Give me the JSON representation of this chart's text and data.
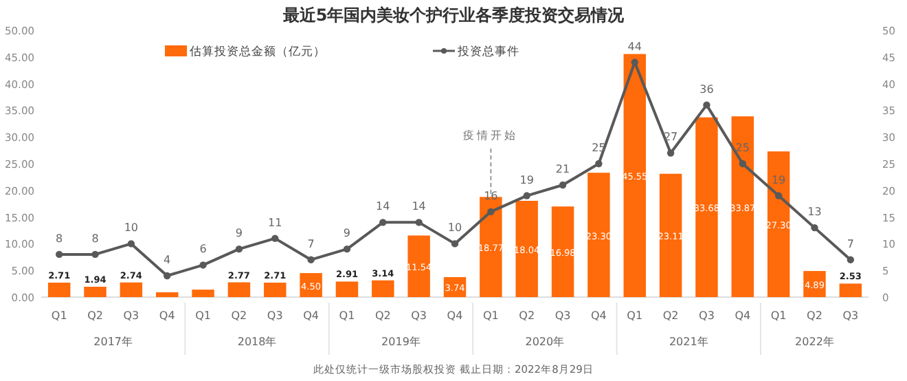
{
  "chart_data": {
    "type": "bar",
    "title": "最近5年国内美妆个护行业各季度投资交易情况",
    "categories": [
      "Q1",
      "Q2",
      "Q3",
      "Q4",
      "Q1",
      "Q2",
      "Q3",
      "Q4",
      "Q1",
      "Q2",
      "Q3",
      "Q4",
      "Q1",
      "Q2",
      "Q3",
      "Q4",
      "Q1",
      "Q2",
      "Q3",
      "Q4",
      "Q1",
      "Q2",
      "Q3"
    ],
    "series": [
      {
        "name": "估算投资总金额（亿元）",
        "color": "#ff6a0a",
        "values": [
          2.71,
          1.94,
          2.74,
          0.9,
          1.4,
          2.77,
          2.71,
          4.5,
          2.91,
          3.14,
          11.54,
          3.74,
          18.77,
          18.04,
          16.98,
          23.3,
          45.55,
          23.11,
          33.68,
          33.87,
          27.3,
          4.89,
          2.53
        ],
        "value_labels": [
          "2.71",
          "1.94",
          "2.74",
          null,
          null,
          "2.77",
          "2.71",
          "4.50",
          "2.91",
          "3.14",
          "11.54",
          "3.74",
          "18.77",
          "18.04",
          "16.98",
          "23.30",
          "45.55",
          "23.11",
          "33.68",
          "33.87",
          "27.30",
          "4.89",
          "2.53"
        ]
      },
      {
        "name": "投资总事件",
        "type": "line",
        "axis": "y2",
        "color": "#595959",
        "marker": "circle",
        "values": [
          8,
          8,
          10,
          4,
          6,
          9,
          11,
          7,
          9,
          14,
          14,
          10,
          16,
          19,
          21,
          25,
          44,
          27,
          36,
          25,
          19,
          13,
          7
        ],
        "value_labels": [
          "8",
          "8",
          "10",
          "4",
          "6",
          "9",
          "11",
          "7",
          "9",
          "14",
          "14",
          "10",
          "16",
          "19",
          "21",
          "25",
          "44",
          "27",
          "36",
          "25",
          "19",
          "13",
          "7"
        ]
      }
    ],
    "ylim": [
      0,
      50
    ],
    "yticks": [
      {
        "value": 0,
        "label": "0.00"
      },
      {
        "value": 5,
        "label": "5.00"
      },
      {
        "value": 10,
        "label": "10.00"
      },
      {
        "value": 15,
        "label": "15.00"
      },
      {
        "value": 20,
        "label": "20.00"
      },
      {
        "value": 25,
        "label": "25.00"
      },
      {
        "value": 30,
        "label": "30.00"
      },
      {
        "value": 35,
        "label": "35.00"
      },
      {
        "value": 40,
        "label": "40.00"
      },
      {
        "value": 45,
        "label": "45.00"
      },
      {
        "value": 50,
        "label": "50.00"
      }
    ],
    "y2lim": [
      0,
      50
    ],
    "y2ticks": [
      0,
      5,
      10,
      15,
      20,
      25,
      30,
      35,
      40,
      45,
      50
    ],
    "legend": "top",
    "grid": false,
    "annotations": [
      "2017年",
      "2018年",
      "2019年",
      "2020年",
      "2021年",
      "2022年",
      "此处仅统计一级市场股权投资  截止日期：2022年8月29日",
      {
        "text": "疫情开始",
        "y": 18.77
      }
    ]
  }
}
